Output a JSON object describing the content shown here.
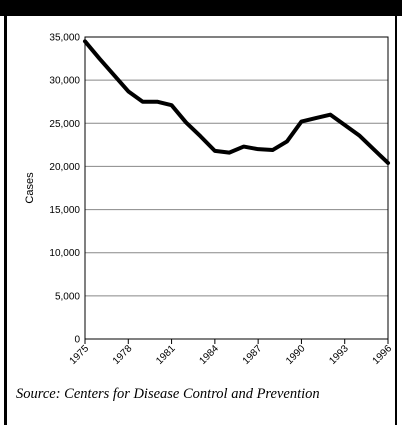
{
  "chart_data": {
    "type": "line",
    "ylabel": "Cases",
    "xlabel": "",
    "title": "",
    "ylim": [
      0,
      35000
    ],
    "xlim": [
      1975,
      1996
    ],
    "grid": true,
    "y_ticks": [
      0,
      5000,
      10000,
      15000,
      20000,
      25000,
      30000,
      35000
    ],
    "y_tick_labels": [
      "0",
      "5,000",
      "10,000",
      "15,000",
      "20,000",
      "25,000",
      "30,000",
      "35,000"
    ],
    "x_ticks": [
      1975,
      1978,
      1981,
      1984,
      1987,
      1990,
      1993,
      1996
    ],
    "x_tick_labels": [
      "1975",
      "1978",
      "1981",
      "1984",
      "1987",
      "1990",
      "1993",
      "1996"
    ],
    "x": [
      1975,
      1976,
      1977,
      1978,
      1979,
      1980,
      1981,
      1982,
      1983,
      1984,
      1985,
      1986,
      1987,
      1988,
      1989,
      1990,
      1991,
      1992,
      1993,
      1994,
      1995,
      1996
    ],
    "values": [
      34500,
      32500,
      30600,
      28700,
      27500,
      27500,
      27100,
      25100,
      23500,
      21800,
      21600,
      22300,
      22000,
      21900,
      22900,
      25200,
      25600,
      26000,
      24800,
      23600,
      22000,
      20400
    ],
    "line_color": "#000000"
  },
  "source": "Source: Centers for Disease Control and Prevention"
}
